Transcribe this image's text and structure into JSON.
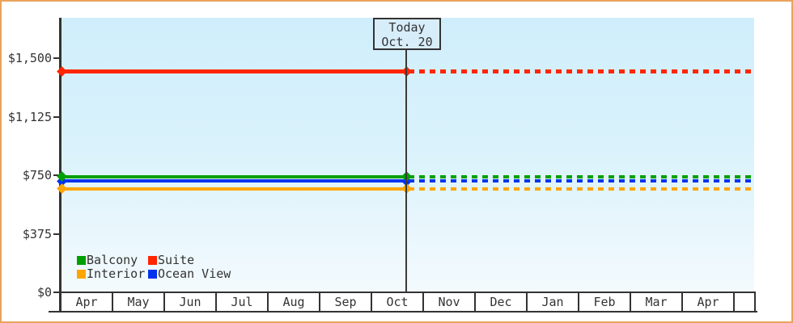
{
  "frame": {
    "border_color": "#e9a45c",
    "background": "#ffffff"
  },
  "plot": {
    "bg_top": "#cfeefb",
    "bg_bottom": "#f3fafd",
    "axis_color": "#333333",
    "text_color": "#333333"
  },
  "today_box": {
    "line1": "Today",
    "line2": "Oct. 20"
  },
  "y_axis": {
    "tick_labels": [
      "$1,500",
      "$1,125",
      "$750",
      "$375",
      "$0"
    ]
  },
  "x_axis": {
    "month_labels": [
      "Apr",
      "May",
      "Jun",
      "Jul",
      "Aug",
      "Sep",
      "Oct",
      "Nov",
      "Dec",
      "Jan",
      "Feb",
      "Mar",
      "Apr"
    ]
  },
  "legend": {
    "items": [
      {
        "label": "Balcony",
        "color": "#00a000"
      },
      {
        "label": "Suite",
        "color": "#ff2600"
      },
      {
        "label": "Interior",
        "color": "#ffa500"
      },
      {
        "label": "Ocean View",
        "color": "#0033ee"
      }
    ]
  },
  "chart_data": {
    "type": "line",
    "title": "",
    "x": [
      "Apr",
      "May",
      "Jun",
      "Jul",
      "Aug",
      "Sep",
      "Oct",
      "Nov",
      "Dec",
      "Jan",
      "Feb",
      "Mar",
      "Apr"
    ],
    "y_ticks": [
      1500,
      1125,
      750,
      375,
      0
    ],
    "ylim": [
      0,
      1760
    ],
    "grid": false,
    "legend_position": "bottom-left-inside",
    "annotation": {
      "label": "Today",
      "date": "Oct. 20",
      "month": "Oct",
      "month_fraction": 0.64
    },
    "series": [
      {
        "name": "Suite",
        "color": "#ff2600",
        "value": 1415,
        "style_before_today": "solid",
        "style_after_today": "dotted"
      },
      {
        "name": "Ocean View",
        "color": "#0033ee",
        "value": 712,
        "style_before_today": "solid",
        "style_after_today": "dotted"
      },
      {
        "name": "Balcony",
        "color": "#00a000",
        "value": 742,
        "style_before_today": "solid",
        "style_after_today": "dotted"
      },
      {
        "name": "Interior",
        "color": "#ffa500",
        "value": 663,
        "style_before_today": "solid",
        "style_after_today": "dotted"
      }
    ]
  }
}
